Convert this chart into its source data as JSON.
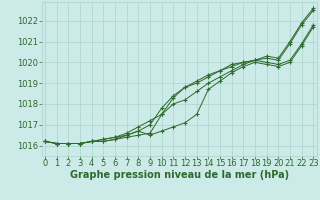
{
  "xlabel": "Graphe pression niveau de la mer (hPa)",
  "hours": [
    0,
    1,
    2,
    3,
    4,
    5,
    6,
    7,
    8,
    9,
    10,
    11,
    12,
    13,
    14,
    15,
    16,
    17,
    18,
    19,
    20,
    21,
    22,
    23
  ],
  "line1": [
    1016.2,
    1016.1,
    1016.1,
    1016.1,
    1016.2,
    1016.2,
    1016.3,
    1016.4,
    1016.5,
    1016.6,
    1017.5,
    1018.3,
    1018.8,
    1019.0,
    1019.3,
    1019.6,
    1019.8,
    1020.0,
    1020.1,
    1020.3,
    1020.2,
    1021.0,
    1021.9,
    1022.6
  ],
  "line2": [
    1016.2,
    1016.1,
    1016.1,
    1016.1,
    1016.2,
    1016.2,
    1016.3,
    1016.5,
    1016.7,
    1016.5,
    1016.7,
    1016.9,
    1017.1,
    1017.5,
    1018.7,
    1019.1,
    1019.5,
    1019.8,
    1020.0,
    1019.9,
    1019.8,
    1020.0,
    1020.8,
    1021.7
  ],
  "line3": [
    1016.2,
    1016.1,
    1016.1,
    1016.1,
    1016.2,
    1016.3,
    1016.4,
    1016.6,
    1016.9,
    1017.2,
    1017.5,
    1018.0,
    1018.2,
    1018.6,
    1019.0,
    1019.3,
    1019.6,
    1019.9,
    1020.1,
    1020.0,
    1019.9,
    1020.1,
    1020.9,
    1021.8
  ],
  "line4": [
    1016.2,
    1016.1,
    1016.1,
    1016.1,
    1016.2,
    1016.3,
    1016.4,
    1016.5,
    1016.7,
    1017.0,
    1017.8,
    1018.4,
    1018.8,
    1019.1,
    1019.4,
    1019.6,
    1019.9,
    1020.0,
    1020.1,
    1020.2,
    1020.1,
    1020.9,
    1021.8,
    1022.5
  ],
  "line_color": "#2d6a2d",
  "marker_color": "#2d6a2d",
  "bg_color": "#cceae7",
  "grid_color": "#aad4d0",
  "tick_color": "#2d6a2d",
  "label_color": "#2d6a2d",
  "ylim": [
    1015.5,
    1022.9
  ],
  "yticks": [
    1016,
    1017,
    1018,
    1019,
    1020,
    1021,
    1022
  ],
  "xlim": [
    -0.3,
    23.3
  ],
  "xticks": [
    0,
    1,
    2,
    3,
    4,
    5,
    6,
    7,
    8,
    9,
    10,
    11,
    12,
    13,
    14,
    15,
    16,
    17,
    18,
    19,
    20,
    21,
    22,
    23
  ],
  "xlabel_fontsize": 7.0,
  "tick_fontsize": 6.0
}
